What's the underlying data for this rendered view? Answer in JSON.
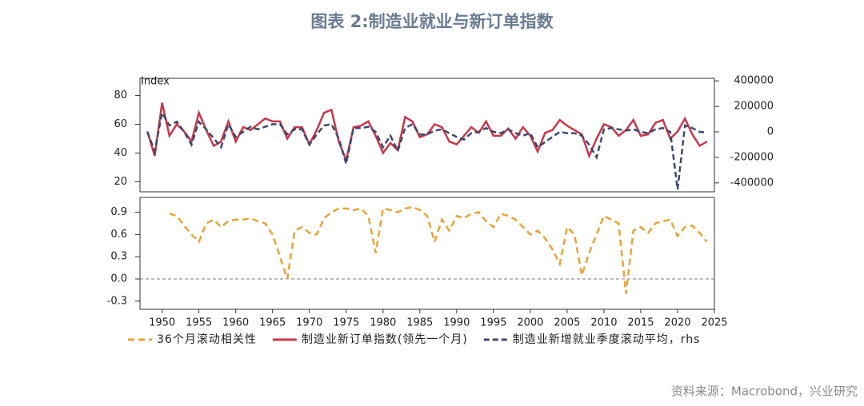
{
  "title": "图表 2:制造业就业与新订单指数",
  "source": "资料来源：Macrobond，兴业研究",
  "chart_data": [
    {
      "type": "line",
      "ylabel": "Index",
      "x": [
        1948,
        1949,
        1950,
        1951,
        1952,
        1953,
        1954,
        1955,
        1956,
        1957,
        1958,
        1959,
        1960,
        1961,
        1962,
        1963,
        1964,
        1965,
        1966,
        1967,
        1968,
        1969,
        1970,
        1971,
        1972,
        1973,
        1974,
        1975,
        1976,
        1977,
        1978,
        1979,
        1980,
        1981,
        1982,
        1983,
        1984,
        1985,
        1986,
        1987,
        1988,
        1989,
        1990,
        1991,
        1992,
        1993,
        1994,
        1995,
        1996,
        1997,
        1998,
        1999,
        2000,
        2001,
        2002,
        2003,
        2004,
        2005,
        2006,
        2007,
        2008,
        2009,
        2010,
        2011,
        2012,
        2013,
        2014,
        2015,
        2016,
        2017,
        2018,
        2019,
        2020,
        2021,
        2022,
        2023,
        2024
      ],
      "xlim": [
        1947,
        2025
      ],
      "ylim": [
        13,
        92
      ],
      "yticks": [
        20,
        40,
        60,
        80
      ],
      "y2lim": [
        -470000,
        420000
      ],
      "y2ticks": [
        -400000,
        -200000,
        0,
        200000,
        400000
      ],
      "series": [
        {
          "name": "制造业新订单指数(领先一个月)",
          "color": "#c8374a",
          "values": [
            55,
            38,
            75,
            52,
            60,
            55,
            48,
            68,
            56,
            45,
            48,
            62,
            48,
            58,
            56,
            60,
            64,
            62,
            62,
            50,
            58,
            58,
            46,
            56,
            68,
            70,
            48,
            35,
            58,
            59,
            62,
            52,
            40,
            47,
            42,
            65,
            62,
            51,
            53,
            60,
            58,
            48,
            46,
            52,
            58,
            54,
            62,
            52,
            52,
            57,
            50,
            58,
            52,
            41,
            54,
            56,
            63,
            59,
            56,
            53,
            38,
            50,
            60,
            58,
            52,
            56,
            63,
            52,
            53,
            61,
            63,
            50,
            55,
            64,
            53,
            45,
            48
          ]
        },
        {
          "name": "制造业新增就业季度滚动平均，rhs",
          "color": "#3c4a6b",
          "axis": "y2",
          "values": [
            0,
            -150000,
            150000,
            50000,
            80000,
            0,
            -100000,
            80000,
            20000,
            -50000,
            -120000,
            60000,
            -40000,
            0,
            40000,
            20000,
            40000,
            60000,
            60000,
            -20000,
            20000,
            20000,
            -100000,
            -20000,
            50000,
            60000,
            -50000,
            -250000,
            30000,
            30000,
            40000,
            0,
            -120000,
            -30000,
            -150000,
            30000,
            60000,
            -20000,
            -20000,
            10000,
            20000,
            -10000,
            -40000,
            -60000,
            -10000,
            0,
            30000,
            0,
            -10000,
            20000,
            -10000,
            -30000,
            -10000,
            -120000,
            -80000,
            -40000,
            0,
            -10000,
            -10000,
            -30000,
            -100000,
            -200000,
            20000,
            30000,
            20000,
            10000,
            20000,
            0,
            -10000,
            20000,
            30000,
            0,
            -450000,
            50000,
            30000,
            0,
            -5000
          ]
        }
      ]
    },
    {
      "type": "line",
      "x": [
        1948,
        1949,
        1950,
        1951,
        1952,
        1953,
        1954,
        1955,
        1956,
        1957,
        1958,
        1959,
        1960,
        1961,
        1962,
        1963,
        1964,
        1965,
        1966,
        1967,
        1968,
        1969,
        1970,
        1971,
        1972,
        1973,
        1974,
        1975,
        1976,
        1977,
        1978,
        1979,
        1980,
        1981,
        1982,
        1983,
        1984,
        1985,
        1986,
        1987,
        1988,
        1989,
        1990,
        1991,
        1992,
        1993,
        1994,
        1995,
        1996,
        1997,
        1998,
        1999,
        2000,
        2001,
        2002,
        2003,
        2004,
        2005,
        2006,
        2007,
        2008,
        2009,
        2010,
        2011,
        2012,
        2013,
        2014,
        2015,
        2016,
        2017,
        2018,
        2019,
        2020,
        2021,
        2022,
        2023,
        2024
      ],
      "xlim": [
        1947,
        2025
      ],
      "xticks": [
        1950,
        1955,
        1960,
        1965,
        1970,
        1975,
        1980,
        1985,
        1990,
        1995,
        2000,
        2005,
        2010,
        2015,
        2020,
        2025
      ],
      "ylim": [
        -0.41,
        1.1
      ],
      "yticks": [
        0.9,
        0.6,
        0.3,
        {
          "value": 0,
          "label": "0.0"
        },
        -0.3
      ],
      "zero_line": true,
      "series": [
        {
          "name": "36个月滚动相关性",
          "color": "#e8a33a",
          "values": [
            null,
            null,
            null,
            0.88,
            0.85,
            0.72,
            0.6,
            0.5,
            0.75,
            0.8,
            0.7,
            0.78,
            0.8,
            0.8,
            0.82,
            0.78,
            0.75,
            0.6,
            0.3,
            0.0,
            0.65,
            0.7,
            0.62,
            0.6,
            0.82,
            0.9,
            0.95,
            0.95,
            0.93,
            0.95,
            0.85,
            0.35,
            0.95,
            0.93,
            0.9,
            0.95,
            0.97,
            0.93,
            0.85,
            0.5,
            0.8,
            0.65,
            0.85,
            0.82,
            0.88,
            0.9,
            0.78,
            0.7,
            0.88,
            0.85,
            0.8,
            0.7,
            0.6,
            0.65,
            0.55,
            0.4,
            0.2,
            0.7,
            0.6,
            0.05,
            0.35,
            0.6,
            0.85,
            0.8,
            0.75,
            -0.2,
            0.65,
            0.7,
            0.62,
            0.75,
            0.78,
            0.8,
            0.58,
            0.7,
            0.72,
            0.62,
            0.5
          ]
        }
      ]
    }
  ]
}
